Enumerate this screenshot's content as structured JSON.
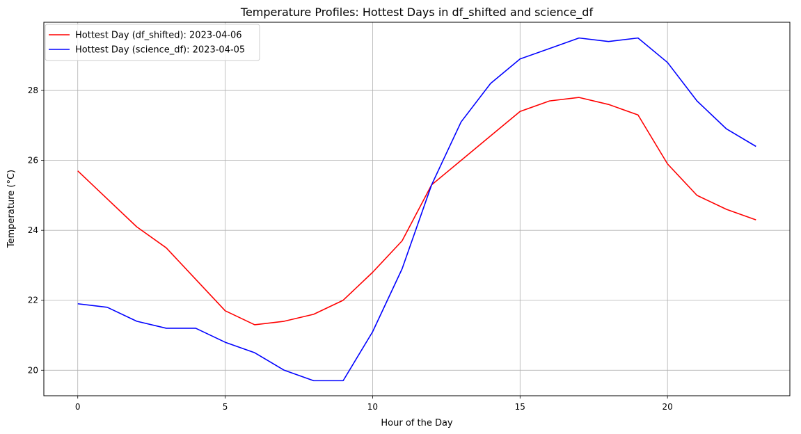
{
  "chart_data": {
    "type": "line",
    "title": "Temperature Profiles: Hottest Days in df_shifted and science_df",
    "xlabel": "Hour of the Day",
    "ylabel": "Temperature (°C)",
    "xlim": [
      -1.15,
      24.15
    ],
    "ylim": [
      19.27,
      29.95
    ],
    "xticks": [
      0,
      5,
      10,
      15,
      20
    ],
    "yticks": [
      20,
      22,
      24,
      26,
      28
    ],
    "grid": true,
    "legend_position": "top-left",
    "x": [
      0,
      1,
      2,
      3,
      4,
      5,
      6,
      7,
      8,
      9,
      10,
      11,
      12,
      13,
      14,
      15,
      16,
      17,
      18,
      19,
      20,
      21,
      22,
      23
    ],
    "series": [
      {
        "name": "Hottest Day (df_shifted): 2023-04-06",
        "color": "#ff0000",
        "values": [
          25.7,
          24.9,
          24.1,
          23.5,
          22.6,
          21.7,
          21.3,
          21.4,
          21.6,
          22.0,
          22.8,
          23.7,
          25.3,
          26.0,
          26.7,
          27.4,
          27.7,
          27.8,
          27.6,
          27.3,
          25.9,
          25.0,
          24.6,
          24.3
        ]
      },
      {
        "name": "Hottest Day (science_df): 2023-04-05",
        "color": "#0000ff",
        "values": [
          21.9,
          21.8,
          21.4,
          21.2,
          21.2,
          20.8,
          20.5,
          20.0,
          19.7,
          19.7,
          21.1,
          22.9,
          25.3,
          27.1,
          28.2,
          28.9,
          29.2,
          29.5,
          29.4,
          29.5,
          28.8,
          27.7,
          26.9,
          26.4
        ]
      }
    ]
  }
}
